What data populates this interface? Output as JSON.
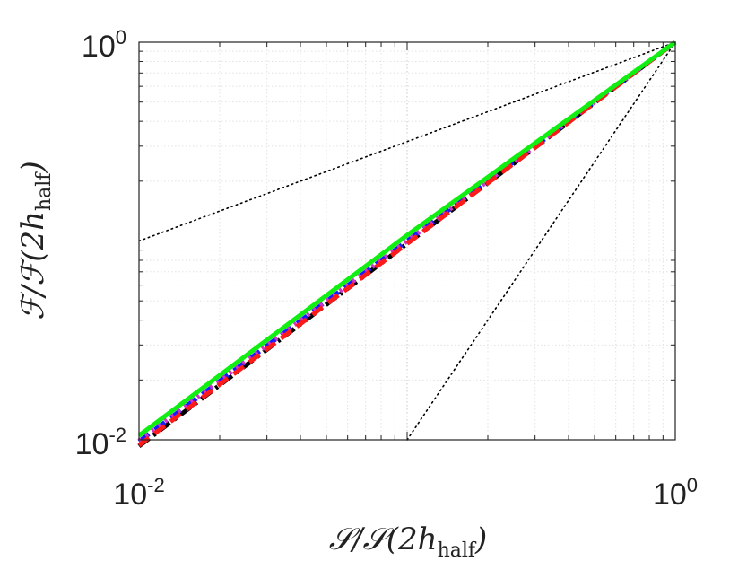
{
  "chart_data": {
    "type": "line",
    "x_scale": "log",
    "y_scale": "log",
    "xlim": [
      0.01,
      1
    ],
    "ylim": [
      0.01,
      1
    ],
    "grid": true,
    "xlabel": {
      "main": "𝒮/𝒮(2h",
      "sub": "half",
      "close": ")"
    },
    "ylabel": {
      "main": "ℱ/ℱ(2h",
      "sub": "half",
      "close": ")"
    },
    "x_ticks": [
      {
        "value": 0.01,
        "base": "10",
        "exp": "-2"
      },
      {
        "value": 1,
        "base": "10",
        "exp": "0"
      }
    ],
    "y_ticks": [
      {
        "value": 0.01,
        "base": "10",
        "exp": "-2"
      },
      {
        "value": 1,
        "base": "10",
        "exp": "0"
      }
    ],
    "reference_lines": [
      {
        "style": "dotted",
        "color": "#000000",
        "x": [
          0.01,
          1
        ],
        "y": [
          0.1,
          1
        ]
      },
      {
        "style": "dotted",
        "color": "#000000",
        "x": [
          0.01,
          1
        ],
        "y": [
          0.0001,
          1
        ]
      }
    ],
    "series": [
      {
        "color": "#000000",
        "dash": "dashdot",
        "x": [
          0.01,
          0.1,
          1
        ],
        "y": [
          0.0093,
          0.097,
          1
        ]
      },
      {
        "color": "#1a1aff",
        "dash": "dashed",
        "x": [
          0.01,
          0.1,
          1
        ],
        "y": [
          0.0098,
          0.1,
          1
        ]
      },
      {
        "color": "#cc33cc",
        "dash": "dotted",
        "x": [
          0.01,
          0.1,
          1
        ],
        "y": [
          0.0099,
          0.1,
          1
        ]
      },
      {
        "color": "#ff1a1a",
        "dash": "dashed",
        "x": [
          0.01,
          0.1,
          1
        ],
        "y": [
          0.0094,
          0.097,
          1
        ]
      },
      {
        "color": "#11ee11",
        "dash": "solid",
        "x": [
          0.01,
          0.1,
          1
        ],
        "y": [
          0.0105,
          0.107,
          1
        ]
      }
    ]
  }
}
